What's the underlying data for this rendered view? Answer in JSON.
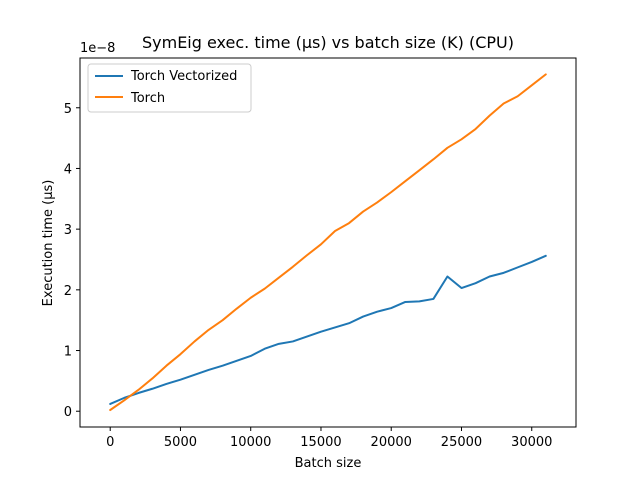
{
  "chart_data": {
    "type": "line",
    "title": "SymEig exec. time (µs) vs batch size (K) (CPU)",
    "xlabel": "Batch size",
    "ylabel": "Execution time (µs)",
    "y_offset_label": "1e−8",
    "y_scale_factor": 1e-08,
    "xlim": [
      -2150,
      33150
    ],
    "ylim": [
      -2.6e-09,
      5.82e-08
    ],
    "x_ticks": [
      0,
      5000,
      10000,
      15000,
      20000,
      25000,
      30000
    ],
    "x_tick_labels": [
      "0",
      "5000",
      "10000",
      "15000",
      "20000",
      "25000",
      "30000"
    ],
    "y_ticks": [
      0,
      1e-08,
      2e-08,
      3e-08,
      4e-08,
      5e-08
    ],
    "y_tick_labels": [
      "0",
      "1",
      "2",
      "3",
      "4",
      "5"
    ],
    "grid": false,
    "legend_position": "upper-left",
    "x": [
      0,
      1000,
      2000,
      3000,
      4000,
      5000,
      6000,
      7000,
      8000,
      9000,
      10000,
      11000,
      12000,
      13000,
      14000,
      15000,
      16000,
      17000,
      18000,
      19000,
      20000,
      21000,
      22000,
      23000,
      24000,
      25000,
      26000,
      27000,
      28000,
      29000,
      30000,
      31000
    ],
    "series": [
      {
        "name": "Torch Vectorized",
        "color": "#1f77b4",
        "values": [
          1.2e-09,
          2.2e-09,
          3e-09,
          3.7e-09,
          4.5e-09,
          5.2e-09,
          6e-09,
          6.8e-09,
          7.5e-09,
          8.3e-09,
          9.1e-09,
          1.03e-08,
          1.11e-08,
          1.15e-08,
          1.23e-08,
          1.31e-08,
          1.38e-08,
          1.45e-08,
          1.56e-08,
          1.64e-08,
          1.7e-08,
          1.8e-08,
          1.81e-08,
          1.85e-08,
          2.22e-08,
          2.03e-08,
          2.11e-08,
          2.22e-08,
          2.28e-08,
          2.37e-08,
          2.46e-08,
          2.56e-08
        ]
      },
      {
        "name": "Torch",
        "color": "#ff7f0e",
        "values": [
          2e-10,
          1.8e-09,
          3.5e-09,
          5.4e-09,
          7.5e-09,
          9.4e-09,
          1.15e-08,
          1.34e-08,
          1.5e-08,
          1.69e-08,
          1.87e-08,
          2.02e-08,
          2.2e-08,
          2.38e-08,
          2.57e-08,
          2.75e-08,
          2.97e-08,
          3.1e-08,
          3.29e-08,
          3.44e-08,
          3.61e-08,
          3.79e-08,
          3.97e-08,
          4.15e-08,
          4.34e-08,
          4.48e-08,
          4.65e-08,
          4.87e-08,
          5.07e-08,
          5.19e-08,
          5.37e-08,
          5.55e-08
        ]
      }
    ]
  }
}
